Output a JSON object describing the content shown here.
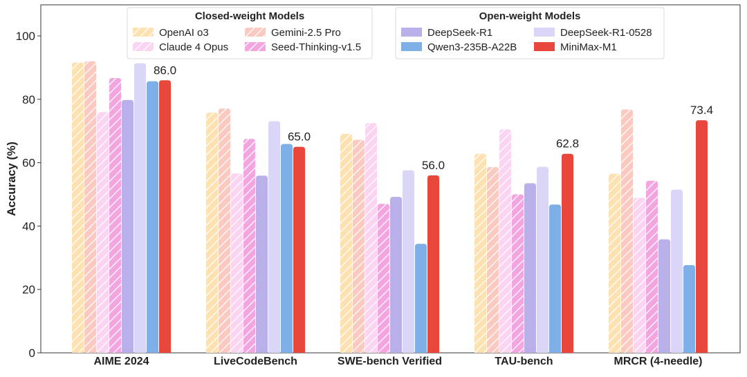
{
  "chart_data": {
    "type": "bar",
    "ylabel": "Accuracy (%)",
    "xlabel": "",
    "ylim": [
      0,
      110
    ],
    "yticks": [
      0,
      20,
      40,
      60,
      80,
      100
    ],
    "grid": false,
    "categories": [
      "AIME 2024",
      "LiveCodeBench",
      "SWE-bench Verified",
      "TAU-bench",
      "MRCR (4-needle)"
    ],
    "legend_groups": [
      {
        "title": "Closed-weight Models",
        "placement": "top-left"
      },
      {
        "title": "Open-weight Models",
        "placement": "top-center"
      }
    ],
    "series": [
      {
        "name": "OpenAI o3",
        "group": 0,
        "color": "#fde1b0",
        "hatched": true,
        "values": [
          91.6,
          75.8,
          69.1,
          62.8,
          56.5
        ]
      },
      {
        "name": "Gemini-2.5 Pro",
        "group": 0,
        "color": "#fbc9c0",
        "hatched": true,
        "values": [
          92.0,
          77.1,
          67.2,
          58.6,
          76.8
        ]
      },
      {
        "name": "Claude 4 Opus",
        "group": 0,
        "color": "#fbd4f2",
        "hatched": true,
        "values": [
          76.0,
          56.6,
          72.5,
          70.5,
          48.9
        ]
      },
      {
        "name": "Seed-Thinking-v1.5",
        "group": 0,
        "color": "#f3a5e0",
        "hatched": true,
        "values": [
          86.7,
          67.5,
          47.0,
          50.0,
          54.3
        ]
      },
      {
        "name": "DeepSeek-R1",
        "group": 1,
        "color": "#b9b0ea",
        "hatched": false,
        "values": [
          79.8,
          55.9,
          49.2,
          53.5,
          35.8
        ]
      },
      {
        "name": "DeepSeek-R1-0528",
        "group": 1,
        "color": "#d9d6f8",
        "hatched": false,
        "values": [
          91.4,
          73.1,
          57.6,
          58.7,
          51.5
        ]
      },
      {
        "name": "Qwen3-235B-A22B",
        "group": 1,
        "color": "#7eafe6",
        "hatched": false,
        "values": [
          85.7,
          65.9,
          34.4,
          46.8,
          27.7
        ]
      },
      {
        "name": "MiniMax-M1",
        "group": 1,
        "color": "#e8473b",
        "hatched": false,
        "values": [
          86.0,
          65.0,
          56.0,
          62.8,
          73.4
        ]
      }
    ],
    "data_labels": [
      {
        "series": "MiniMax-M1",
        "category": "AIME 2024",
        "text": "86.0"
      },
      {
        "series": "MiniMax-M1",
        "category": "LiveCodeBench",
        "text": "65.0"
      },
      {
        "series": "MiniMax-M1",
        "category": "SWE-bench Verified",
        "text": "56.0"
      },
      {
        "series": "MiniMax-M1",
        "category": "TAU-bench",
        "text": "62.8"
      },
      {
        "series": "MiniMax-M1",
        "category": "MRCR (4-needle)",
        "text": "73.4"
      }
    ]
  }
}
